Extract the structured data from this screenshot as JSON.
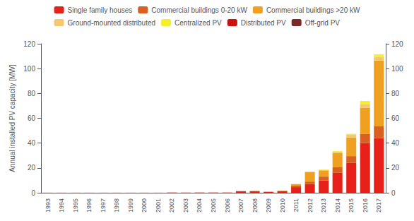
{
  "chart_data": {
    "type": "bar",
    "stacked": true,
    "grid": false,
    "legend": "top",
    "ylabel": "Annual installed PV capacity [MW]",
    "categories": [
      "1993",
      "1994",
      "1995",
      "1996",
      "1997",
      "1998",
      "1999",
      "2000",
      "2001",
      "2002",
      "2003",
      "2004",
      "2005",
      "2006",
      "2007",
      "2008",
      "2009",
      "2010",
      "2011",
      "2012",
      "2013",
      "2014",
      "2015",
      "2016",
      "2017"
    ],
    "ylim": [
      0,
      120
    ],
    "yticks": [
      0,
      20,
      40,
      60,
      80,
      100,
      120
    ],
    "y2lim": [
      0,
      120
    ],
    "y2ticks": [
      0,
      20,
      40,
      60,
      80,
      100,
      120
    ],
    "series": [
      {
        "name": "Single family houses",
        "color": "#e8201a",
        "values": [
          0.05,
          0.05,
          0.05,
          0.05,
          0.05,
          0.05,
          0.05,
          0.05,
          0.05,
          0.2,
          0.2,
          0.2,
          0.2,
          0.2,
          1.2,
          1.2,
          0.6,
          1.2,
          4.5,
          7.0,
          10.0,
          16.0,
          24.0,
          40.0,
          44.0
        ]
      },
      {
        "name": "Commercial buildings 0-20 kW",
        "color": "#d96020",
        "values": [
          0.0,
          0.0,
          0.0,
          0.0,
          0.0,
          0.0,
          0.0,
          0.0,
          0.0,
          0.0,
          0.0,
          0.0,
          0.0,
          0.0,
          0.1,
          0.2,
          0.2,
          0.3,
          1.2,
          2.0,
          3.0,
          4.5,
          5.5,
          7.5,
          9.5
        ]
      },
      {
        "name": "Commercial buildings >20 kW",
        "color": "#f0a020",
        "values": [
          0.0,
          0.0,
          0.0,
          0.0,
          0.0,
          0.0,
          0.0,
          0.0,
          0.0,
          0.0,
          0.0,
          0.0,
          0.0,
          0.0,
          0.0,
          0.1,
          0.1,
          0.2,
          1.3,
          7.5,
          5.0,
          11.5,
          15.0,
          21.0,
          53.0
        ]
      },
      {
        "name": "Ground-mounted distributed",
        "color": "#f5c870",
        "values": [
          0.0,
          0.0,
          0.0,
          0.0,
          0.0,
          0.0,
          0.0,
          0.0,
          0.0,
          0.0,
          0.0,
          0.0,
          0.0,
          0.0,
          0.0,
          0.0,
          0.0,
          0.0,
          0.0,
          0.5,
          0.5,
          1.0,
          2.5,
          3.0,
          3.0
        ]
      },
      {
        "name": "Centralized PV",
        "color": "#f5ef28",
        "values": [
          0.0,
          0.0,
          0.0,
          0.0,
          0.0,
          0.0,
          0.0,
          0.0,
          0.0,
          0.0,
          0.0,
          0.0,
          0.0,
          0.0,
          0.0,
          0.0,
          0.0,
          0.0,
          0.0,
          0.0,
          0.3,
          0.5,
          0.5,
          2.5,
          2.0
        ]
      },
      {
        "name": "Distributed PV",
        "color": "#cc1010",
        "values": [
          null,
          null,
          null,
          null,
          null,
          null,
          null,
          null,
          null,
          null,
          null,
          null,
          null,
          null,
          null,
          null,
          null,
          null,
          null,
          null,
          null,
          null,
          null,
          null,
          null
        ]
      },
      {
        "name": "Off-grid PV",
        "color": "#7a2828",
        "values": [
          null,
          null,
          null,
          null,
          null,
          null,
          null,
          null,
          null,
          null,
          null,
          null,
          null,
          null,
          null,
          null,
          null,
          null,
          null,
          null,
          null,
          null,
          null,
          null,
          null
        ]
      }
    ]
  }
}
